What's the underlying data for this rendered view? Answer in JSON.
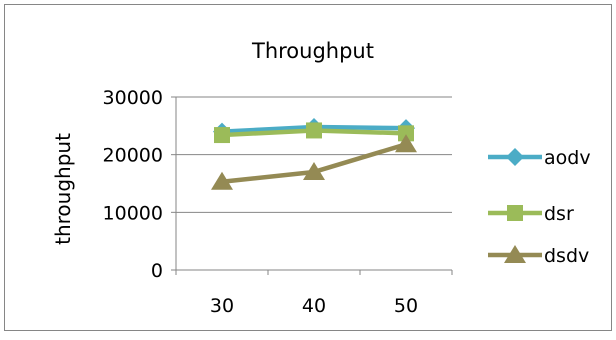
{
  "chart_data": {
    "type": "line",
    "title": "Throughput",
    "xlabel": "",
    "ylabel": "throughput",
    "categories": [
      "30",
      "40",
      "50"
    ],
    "ylim": [
      0,
      30000
    ],
    "yticks": [
      "0",
      "10000",
      "20000",
      "30000"
    ],
    "grid": "horizontal",
    "legend": "right",
    "series": [
      {
        "name": "aodv",
        "values": [
          24000,
          24800,
          24600
        ],
        "color": "#4BACC6",
        "marker": "diamond"
      },
      {
        "name": "dsr",
        "values": [
          23400,
          24200,
          23700
        ],
        "color": "#9BBB59",
        "marker": "square"
      },
      {
        "name": "dsdv",
        "values": [
          15300,
          17000,
          21800
        ],
        "color": "#948A54",
        "marker": "triangle"
      }
    ]
  }
}
